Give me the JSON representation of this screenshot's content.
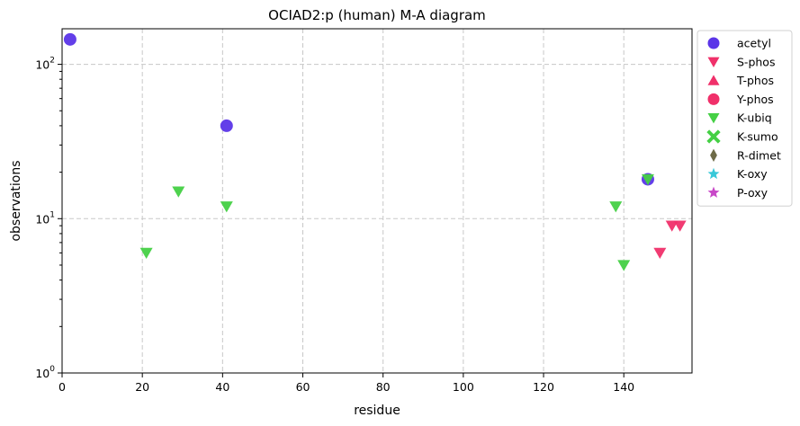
{
  "chart_data": {
    "type": "scatter",
    "title": "OCIAD2:p (human) M-A diagram",
    "xlabel": "residue",
    "ylabel": "observations",
    "xlim": [
      0,
      157
    ],
    "ylim": [
      1,
      170
    ],
    "yscale": "log",
    "grid": true,
    "legend_position": "outside-right",
    "x_ticks": [
      0,
      20,
      40,
      60,
      80,
      100,
      120,
      140
    ],
    "y_ticks": [
      {
        "value": 1,
        "base": "10",
        "exp": "0"
      },
      {
        "value": 10,
        "base": "10",
        "exp": "1"
      },
      {
        "value": 100,
        "base": "10",
        "exp": "2"
      }
    ],
    "series": [
      {
        "name": "acetyl",
        "marker": "circle",
        "color": "#5b35e8",
        "points": [
          {
            "x": 2,
            "y": 145
          },
          {
            "x": 41,
            "y": 40
          },
          {
            "x": 146,
            "y": 18
          }
        ]
      },
      {
        "name": "S-phos",
        "marker": "triangle-down",
        "color": "#f0306a",
        "points": [
          {
            "x": 149,
            "y": 6
          },
          {
            "x": 152,
            "y": 9
          },
          {
            "x": 154,
            "y": 9
          }
        ]
      },
      {
        "name": "T-phos",
        "marker": "triangle-up",
        "color": "#f0306a",
        "points": []
      },
      {
        "name": "Y-phos",
        "marker": "circle",
        "color": "#f0306a",
        "points": []
      },
      {
        "name": "K-ubiq",
        "marker": "triangle-down",
        "color": "#45d045",
        "points": [
          {
            "x": 21,
            "y": 6
          },
          {
            "x": 29,
            "y": 15
          },
          {
            "x": 41,
            "y": 12
          },
          {
            "x": 138,
            "y": 12
          },
          {
            "x": 140,
            "y": 5
          },
          {
            "x": 146,
            "y": 18
          }
        ]
      },
      {
        "name": "K-sumo",
        "marker": "x",
        "color": "#45d045",
        "points": []
      },
      {
        "name": "R-dimet",
        "marker": "diamond",
        "color": "#6e6b48",
        "points": []
      },
      {
        "name": "K-oxy",
        "marker": "star",
        "color": "#38c8d8",
        "points": []
      },
      {
        "name": "P-oxy",
        "marker": "star",
        "color": "#c848c8",
        "points": []
      }
    ]
  }
}
